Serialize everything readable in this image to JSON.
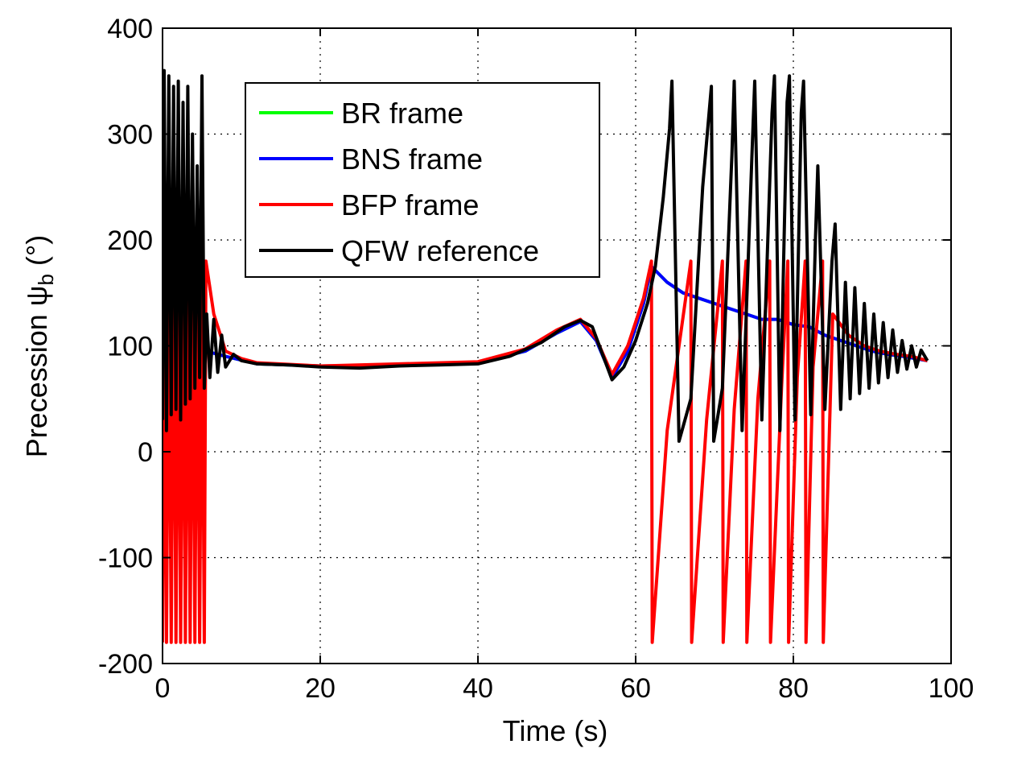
{
  "chart_data": {
    "type": "line",
    "xlabel": "Time (s)",
    "ylabel_main": "Precession ",
    "ylabel_symbol": "ψ",
    "ylabel_sub": "b",
    "ylabel_unit": " (°)",
    "xlim": [
      0,
      100
    ],
    "ylim": [
      -200,
      400
    ],
    "xticks": [
      0,
      20,
      40,
      60,
      80,
      100
    ],
    "yticks": [
      -200,
      -100,
      0,
      100,
      200,
      300,
      400
    ],
    "grid": true,
    "legend_position": "top-left",
    "series": [
      {
        "name": "BR frame",
        "color": "#00ff00",
        "x": [
          0,
          5.5,
          8,
          12,
          20,
          30,
          40,
          46,
          50,
          53,
          55,
          57,
          59,
          61,
          62,
          64,
          66,
          68,
          70,
          72,
          74,
          76,
          78,
          80,
          82,
          84,
          86,
          88,
          90,
          92,
          94,
          97
        ],
        "y": [
          95,
          95,
          90,
          83,
          81,
          82,
          84,
          95,
          112,
          123,
          105,
          70,
          95,
          140,
          175,
          160,
          150,
          145,
          140,
          135,
          130,
          125,
          125,
          120,
          118,
          110,
          105,
          100,
          95,
          92,
          90,
          86
        ]
      },
      {
        "name": "BNS frame",
        "color": "#0000ff",
        "x": [
          0,
          5.5,
          8,
          12,
          20,
          30,
          40,
          46,
          50,
          53,
          55,
          57,
          59,
          61,
          62,
          64,
          66,
          68,
          70,
          72,
          74,
          76,
          78,
          80,
          82,
          84,
          86,
          88,
          90,
          92,
          94,
          97
        ],
        "y": [
          95,
          95,
          90,
          83,
          81,
          82,
          84,
          95,
          112,
          123,
          105,
          70,
          95,
          140,
          175,
          160,
          150,
          145,
          140,
          135,
          130,
          125,
          125,
          120,
          118,
          110,
          105,
          100,
          95,
          92,
          90,
          86
        ]
      },
      {
        "name": "BFP frame",
        "color": "#ff0000",
        "x": [
          0,
          0.2,
          0.5,
          0.8,
          1.1,
          1.4,
          1.7,
          2,
          2.3,
          2.6,
          2.9,
          3.2,
          3.5,
          3.8,
          4.1,
          4.4,
          4.7,
          5,
          5.3,
          5.5,
          6.5,
          8,
          10,
          12,
          20,
          30,
          40,
          46,
          50,
          53,
          55,
          57,
          59,
          61,
          62,
          62.1,
          64,
          67,
          67.1,
          69,
          71,
          71.1,
          72.5,
          74,
          74.1,
          75.5,
          77,
          77.1,
          78.5,
          79.3,
          79.4,
          80.5,
          81.5,
          81.6,
          82.5,
          83.7,
          83.8,
          85,
          87,
          89,
          91,
          93,
          95,
          97
        ],
        "y": [
          -180,
          180,
          -180,
          180,
          -180,
          180,
          -180,
          180,
          -180,
          180,
          -180,
          180,
          -180,
          180,
          -180,
          180,
          -180,
          180,
          -180,
          180,
          130,
          95,
          88,
          84,
          81,
          83,
          85,
          97,
          115,
          125,
          107,
          73,
          100,
          145,
          180,
          -180,
          20,
          180,
          -180,
          30,
          180,
          -180,
          40,
          180,
          -180,
          50,
          180,
          -180,
          60,
          180,
          -180,
          70,
          180,
          -180,
          80,
          180,
          -180,
          130,
          110,
          100,
          95,
          92,
          90,
          86
        ]
      },
      {
        "name": "QFW reference",
        "color": "#000000",
        "x": [
          0,
          0.2,
          0.5,
          0.8,
          1.1,
          1.4,
          1.7,
          2,
          2.3,
          2.6,
          2.9,
          3.2,
          3.5,
          3.8,
          4.1,
          4.4,
          4.7,
          5,
          5.3,
          5.6,
          6,
          6.5,
          7,
          7.5,
          8,
          9,
          10,
          12,
          16,
          20,
          25,
          30,
          35,
          40,
          44,
          48,
          51,
          53,
          54.5,
          55.5,
          57,
          58.5,
          60,
          61.5,
          62.5,
          63.5,
          64.3,
          64.6,
          65.5,
          67,
          68.5,
          69.6,
          69.9,
          71,
          72.2,
          72.5,
          73.5,
          74.8,
          75.1,
          76,
          77.3,
          77.6,
          78.3,
          79.2,
          79.5,
          80.2,
          81,
          81.3,
          82.2,
          82.8,
          83.1,
          84,
          84.9,
          85.3,
          86,
          86.6,
          87.2,
          87.8,
          88.4,
          89,
          89.6,
          90.2,
          90.8,
          91.4,
          92,
          92.6,
          93.2,
          93.8,
          94.4,
          95,
          95.6,
          96.2,
          97
        ],
        "y": [
          30,
          360,
          20,
          355,
          35,
          345,
          40,
          350,
          30,
          330,
          45,
          345,
          50,
          300,
          60,
          270,
          70,
          355,
          60,
          130,
          70,
          125,
          75,
          110,
          80,
          92,
          86,
          83,
          82,
          80,
          79,
          81,
          82,
          83,
          90,
          103,
          118,
          124,
          118,
          98,
          68,
          80,
          105,
          140,
          175,
          240,
          305,
          350,
          10,
          50,
          250,
          345,
          10,
          60,
          280,
          350,
          20,
          290,
          350,
          30,
          320,
          355,
          20,
          330,
          355,
          30,
          320,
          350,
          35,
          200,
          270,
          40,
          180,
          215,
          40,
          160,
          50,
          155,
          55,
          140,
          60,
          130,
          65,
          122,
          70,
          115,
          75,
          105,
          78,
          100,
          80,
          96,
          86
        ]
      }
    ]
  }
}
